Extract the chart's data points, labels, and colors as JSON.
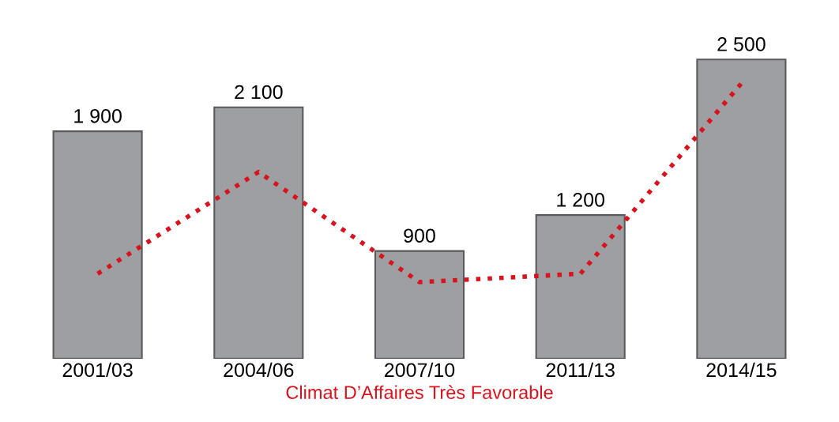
{
  "chart_data": {
    "type": "bar",
    "xlabel": "Climat D’Affaires Très Favorable",
    "categories": [
      "2001/03",
      "2004/06",
      "2007/10",
      "2011/13",
      "2014/15"
    ],
    "series": [
      {
        "type": "bar",
        "color": "#9d9fa3",
        "values": [
          1900,
          2100,
          900,
          1200,
          2500
        ],
        "value_labels": [
          "1 900",
          "2 100",
          "900",
          "1 200",
          "2 500"
        ]
      },
      {
        "type": "line",
        "color": "#d7141e",
        "line_style": "dotted",
        "values": [
          710,
          1560,
          640,
          710,
          2300
        ]
      }
    ],
    "grid": false,
    "legend": false
  }
}
